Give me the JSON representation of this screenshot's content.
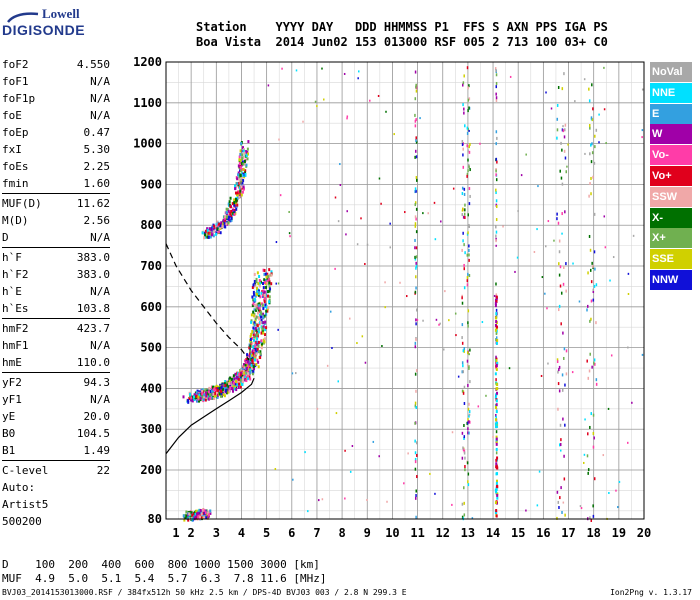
{
  "logo": {
    "line1": "Lowell",
    "line2": "DIGISONDE"
  },
  "header": {
    "labels": "Station    YYYY DAY   DDD HHMMSS P1  FFS S AXN PPS IGA PS",
    "values": "Boa Vista  2014 Jun02 153 013000 RSF 005 2 713 100 03+ C0"
  },
  "params": [
    {
      "k": "foF2",
      "v": "4.550"
    },
    {
      "k": "foF1",
      "v": "N/A"
    },
    {
      "k": "foF1p",
      "v": "N/A"
    },
    {
      "k": "foE",
      "v": "N/A"
    },
    {
      "k": "foEp",
      "v": "0.47"
    },
    {
      "k": "fxI",
      "v": "5.30"
    },
    {
      "k": "foEs",
      "v": "2.25"
    },
    {
      "k": "fmin",
      "v": "1.60"
    },
    {
      "k": "MUF(D)",
      "v": "11.62"
    },
    {
      "k": "M(D)",
      "v": "2.56"
    },
    {
      "k": "D",
      "v": "N/A"
    },
    {
      "k": "h`F",
      "v": "383.0"
    },
    {
      "k": "h`F2",
      "v": "383.0"
    },
    {
      "k": "h`E",
      "v": "N/A"
    },
    {
      "k": "h`Es",
      "v": "103.8"
    },
    {
      "k": "hmF2",
      "v": "423.7"
    },
    {
      "k": "hmF1",
      "v": "N/A"
    },
    {
      "k": "hmE",
      "v": "110.0"
    },
    {
      "k": "yF2",
      "v": "94.3"
    },
    {
      "k": "yF1",
      "v": "N/A"
    },
    {
      "k": "yE",
      "v": "20.0"
    },
    {
      "k": "B0",
      "v": "104.5"
    },
    {
      "k": "B1",
      "v": "1.49"
    },
    {
      "k": "C-level",
      "v": "22"
    }
  ],
  "auto": {
    "l1": "Auto:",
    "l2": "Artist5",
    "l3": "500200"
  },
  "muf_table": {
    "d_label": "D  ",
    "d_vals": "  100  200  400  600  800 1000 1500 3000 [km]",
    "m_label": "MUF",
    "m_vals": "  4.9  5.0  5.1  5.4  5.7  6.3  7.8 11.6 [MHz]"
  },
  "footer": {
    "left": "BVJ03_2014153013000.RSF / 384fx512h 50 kHz 2.5 km / DPS-4D BVJ03 003 / 2.8 N 299.3 E",
    "right": "Ion2Png v. 1.3.17"
  },
  "legend": [
    {
      "label": "NoVal",
      "color": "#a8a8a8"
    },
    {
      "label": "NNE",
      "color": "#00e0ff"
    },
    {
      "label": "E",
      "color": "#33a0e0"
    },
    {
      "label": "W",
      "color": "#a000a8"
    },
    {
      "label": "Vo-",
      "color": "#ff3ca8"
    },
    {
      "label": "Vo+",
      "color": "#e0001c"
    },
    {
      "label": "SSW",
      "color": "#f0a8a8"
    },
    {
      "label": "X-",
      "color": "#007000"
    },
    {
      "label": "X+",
      "color": "#70b050"
    },
    {
      "label": "SSE",
      "color": "#d0d000"
    },
    {
      "label": "NNW",
      "color": "#1010d8"
    }
  ],
  "chart_data": {
    "type": "scatter",
    "xlim": [
      1,
      20
    ],
    "ylim": [
      80,
      1200
    ],
    "xticks": [
      1,
      2,
      3,
      4,
      5,
      6,
      7,
      8,
      9,
      10,
      11,
      12,
      13,
      14,
      15,
      16,
      17,
      18,
      19,
      20
    ],
    "yticks": [
      80,
      200,
      300,
      400,
      500,
      600,
      700,
      800,
      900,
      1000,
      1100,
      1200
    ],
    "grid": true,
    "profile_solid": [
      [
        1.0,
        240
      ],
      [
        1.5,
        280
      ],
      [
        2.0,
        310
      ],
      [
        2.5,
        330
      ],
      [
        3.0,
        350
      ],
      [
        3.5,
        370
      ],
      [
        4.0,
        390
      ],
      [
        4.4,
        410
      ],
      [
        4.5,
        425
      ]
    ],
    "profile_dashed": [
      [
        1.0,
        755
      ],
      [
        1.4,
        700
      ],
      [
        2.0,
        640
      ],
      [
        2.5,
        600
      ],
      [
        3.0,
        560
      ],
      [
        3.5,
        525
      ],
      [
        4.0,
        495
      ],
      [
        4.3,
        470
      ]
    ],
    "traces": [
      {
        "name": "F2 O-trace",
        "pts": [
          [
            1.8,
            380
          ],
          [
            2.2,
            385
          ],
          [
            2.6,
            392
          ],
          [
            3.0,
            400
          ],
          [
            3.4,
            410
          ],
          [
            3.7,
            420
          ],
          [
            3.9,
            430
          ],
          [
            4.1,
            445
          ],
          [
            4.3,
            470
          ],
          [
            4.4,
            500
          ],
          [
            4.5,
            550
          ],
          [
            4.55,
            620
          ],
          [
            4.6,
            680
          ]
        ]
      },
      {
        "name": "F2 X-trace",
        "pts": [
          [
            2.3,
            380
          ],
          [
            2.7,
            386
          ],
          [
            3.1,
            394
          ],
          [
            3.5,
            405
          ],
          [
            3.9,
            420
          ],
          [
            4.2,
            440
          ],
          [
            4.5,
            470
          ],
          [
            4.7,
            520
          ],
          [
            4.85,
            580
          ],
          [
            4.95,
            640
          ],
          [
            5.0,
            690
          ]
        ]
      },
      {
        "name": "Multi-hop",
        "pts": [
          [
            2.5,
            780
          ],
          [
            2.9,
            790
          ],
          [
            3.2,
            805
          ],
          [
            3.5,
            830
          ],
          [
            3.7,
            860
          ],
          [
            3.9,
            900
          ],
          [
            4.0,
            950
          ],
          [
            4.1,
            1000
          ]
        ]
      },
      {
        "name": "Es",
        "pts": [
          [
            1.8,
            90
          ],
          [
            2.0,
            92
          ],
          [
            2.2,
            94
          ],
          [
            2.4,
            95
          ],
          [
            2.6,
            94
          ]
        ]
      }
    ]
  }
}
